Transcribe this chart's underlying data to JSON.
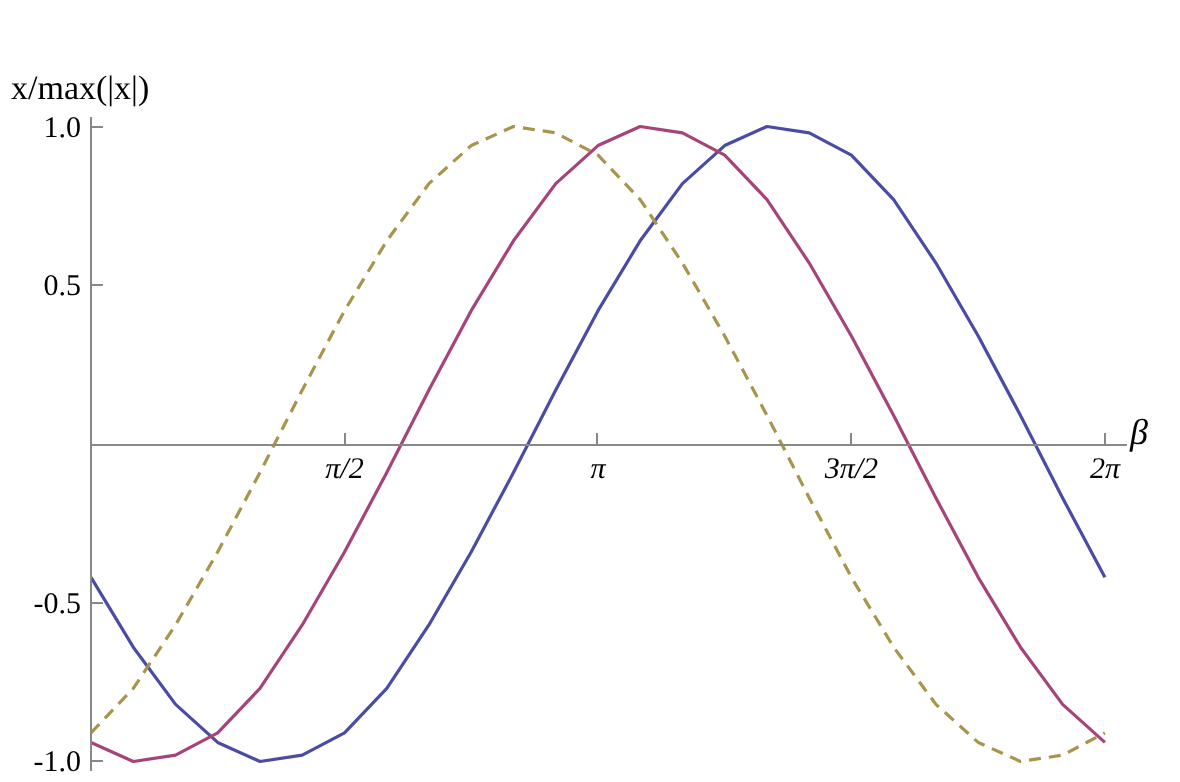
{
  "chart_data": {
    "type": "line",
    "xlabel": "β",
    "ylabel": "x/max(|x|)",
    "x": [
      0,
      0.262,
      0.524,
      0.785,
      1.047,
      1.309,
      1.571,
      1.833,
      2.094,
      2.356,
      2.618,
      2.88,
      3.142,
      3.403,
      3.665,
      3.927,
      4.189,
      4.451,
      4.712,
      4.974,
      5.236,
      5.498,
      5.76,
      6.021,
      6.283
    ],
    "series": [
      {
        "color": "#4b4ba6",
        "line_style": "solid",
        "values": [
          -0.42,
          -0.64,
          -0.82,
          -0.94,
          -1.0,
          -0.98,
          -0.91,
          -0.77,
          -0.57,
          -0.34,
          -0.09,
          0.17,
          0.42,
          0.64,
          0.82,
          0.94,
          1.0,
          0.98,
          0.91,
          0.77,
          0.57,
          0.34,
          0.09,
          -0.17,
          -0.42
        ]
      },
      {
        "color": "#a5437a",
        "line_style": "solid",
        "values": [
          -0.94,
          -1.0,
          -0.98,
          -0.91,
          -0.77,
          -0.57,
          -0.34,
          -0.09,
          0.17,
          0.42,
          0.64,
          0.82,
          0.94,
          1.0,
          0.98,
          0.91,
          0.77,
          0.57,
          0.34,
          0.09,
          -0.17,
          -0.42,
          -0.64,
          -0.82,
          -0.94
        ]
      },
      {
        "color": "#a8954c",
        "line_style": "dashed",
        "values": [
          -0.91,
          -0.77,
          -0.57,
          -0.34,
          -0.09,
          0.17,
          0.42,
          0.64,
          0.82,
          0.94,
          1.0,
          0.98,
          0.91,
          0.77,
          0.57,
          0.34,
          0.09,
          -0.17,
          -0.42,
          -0.64,
          -0.82,
          -0.94,
          -1.0,
          -0.98,
          -0.91
        ]
      }
    ],
    "xlim": [
      0,
      6.42
    ],
    "ylim": [
      -1.03,
      1.03
    ],
    "xticks": [
      {
        "value": 1.5708,
        "label": "π/2"
      },
      {
        "value": 3.1416,
        "label": "π"
      },
      {
        "value": 4.7124,
        "label": "3π/2"
      },
      {
        "value": 6.2832,
        "label": "2π"
      }
    ],
    "yticks": [
      {
        "value": -1,
        "label": "-1.0"
      },
      -0.5,
      0.5,
      {
        "value": 1,
        "label": "1.0"
      }
    ],
    "grid": false,
    "marker": "none"
  }
}
